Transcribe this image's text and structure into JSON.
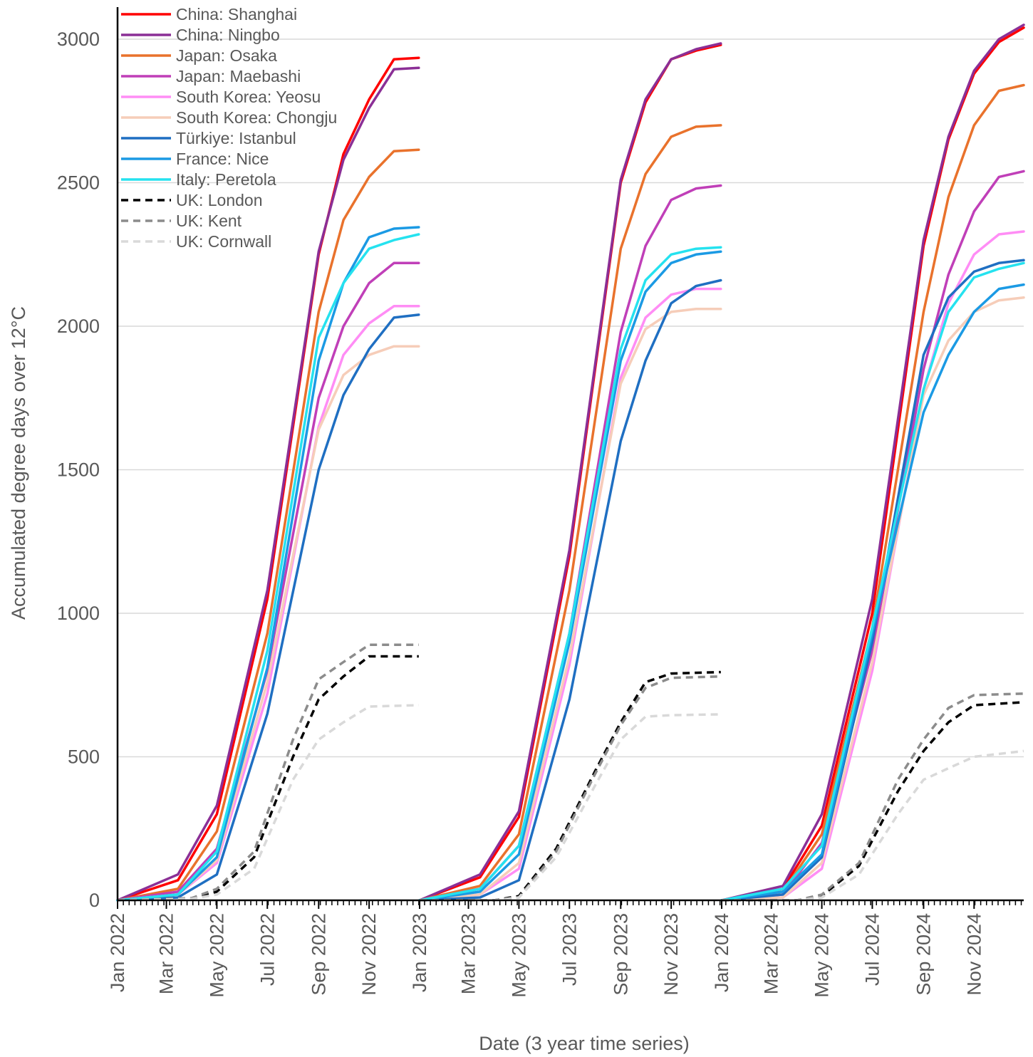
{
  "chart_data": {
    "type": "line",
    "title": "",
    "xlabel": "Date (3 year time series)",
    "ylabel": "Accumulated degree days over 12°C",
    "xlim": [
      "2022-01-01",
      "2024-12-31"
    ],
    "ylim": [
      0,
      3000
    ],
    "y_ticks": [
      0,
      500,
      1000,
      1500,
      2000,
      2500,
      3000
    ],
    "x_tick_labels": [
      {
        "date": "2022-01-01",
        "label": "Jan 2022"
      },
      {
        "date": "2022-03-01",
        "label": "Mar 2022"
      },
      {
        "date": "2022-05-01",
        "label": "May 2022"
      },
      {
        "date": "2022-07-01",
        "label": "Jul 2022"
      },
      {
        "date": "2022-09-01",
        "label": "Sep 2022"
      },
      {
        "date": "2022-11-01",
        "label": "Nov 2022"
      },
      {
        "date": "2023-01-01",
        "label": "Jan 2023"
      },
      {
        "date": "2023-03-01",
        "label": "Mar 2023"
      },
      {
        "date": "2023-05-01",
        "label": "May 2023"
      },
      {
        "date": "2023-07-01",
        "label": "Jul 2023"
      },
      {
        "date": "2023-09-01",
        "label": "Sep 2023"
      },
      {
        "date": "2023-11-01",
        "label": "Nov 2023"
      },
      {
        "date": "2024-01-01",
        "label": "Jan 2024"
      },
      {
        "date": "2024-03-01",
        "label": "Mar 2024"
      },
      {
        "date": "2024-05-01",
        "label": "May 2024"
      },
      {
        "date": "2024-07-01",
        "label": "Jul 2024"
      },
      {
        "date": "2024-09-01",
        "label": "Sep 2024"
      },
      {
        "date": "2024-11-01",
        "label": "Nov 2024"
      }
    ],
    "grid": "horizontal",
    "legend_position": "top-left",
    "series": [
      {
        "name": "China: Shanghai",
        "color": "#ff0000",
        "dash": false,
        "x": [
          "2022-01-01",
          "2022-03-15",
          "2022-05-01",
          "2022-07-01",
          "2022-09-01",
          "2022-10-01",
          "2022-11-01",
          "2022-12-01",
          "2022-12-31",
          "2023-01-01",
          "2023-03-15",
          "2023-05-01",
          "2023-07-01",
          "2023-09-01",
          "2023-10-01",
          "2023-11-01",
          "2023-12-01",
          "2023-12-31",
          "2024-01-01",
          "2024-03-15",
          "2024-05-01",
          "2024-07-01",
          "2024-09-01",
          "2024-10-01",
          "2024-11-01",
          "2024-12-01",
          "2024-12-31"
        ],
        "y": [
          0,
          70,
          300,
          1050,
          2250,
          2600,
          2790,
          2930,
          2935,
          0,
          80,
          290,
          1200,
          2500,
          2780,
          2930,
          2960,
          2980,
          0,
          40,
          260,
          1000,
          2280,
          2650,
          2880,
          2990,
          3040
        ]
      },
      {
        "name": "China: Ningbo",
        "color": "#8b2f96",
        "dash": false,
        "x": [
          "2022-01-01",
          "2022-03-15",
          "2022-05-01",
          "2022-07-01",
          "2022-09-01",
          "2022-10-01",
          "2022-11-01",
          "2022-12-01",
          "2022-12-31",
          "2023-01-01",
          "2023-03-15",
          "2023-05-01",
          "2023-07-01",
          "2023-09-01",
          "2023-10-01",
          "2023-11-01",
          "2023-12-01",
          "2023-12-31",
          "2024-01-01",
          "2024-03-15",
          "2024-05-01",
          "2024-07-01",
          "2024-09-01",
          "2024-10-01",
          "2024-11-01",
          "2024-12-01",
          "2024-12-31"
        ],
        "y": [
          0,
          90,
          330,
          1080,
          2260,
          2580,
          2760,
          2895,
          2900,
          0,
          90,
          310,
          1220,
          2510,
          2790,
          2930,
          2965,
          2985,
          0,
          50,
          300,
          1050,
          2300,
          2660,
          2890,
          3000,
          3050
        ]
      },
      {
        "name": "Japan: Osaka",
        "color": "#e9722c",
        "dash": false,
        "x": [
          "2022-01-01",
          "2022-03-15",
          "2022-05-01",
          "2022-07-01",
          "2022-09-01",
          "2022-10-01",
          "2022-11-01",
          "2022-12-01",
          "2022-12-31",
          "2023-01-01",
          "2023-03-15",
          "2023-05-01",
          "2023-07-01",
          "2023-09-01",
          "2023-10-01",
          "2023-11-01",
          "2023-12-01",
          "2023-12-31",
          "2024-01-01",
          "2024-03-15",
          "2024-05-01",
          "2024-07-01",
          "2024-09-01",
          "2024-10-01",
          "2024-11-01",
          "2024-12-01",
          "2024-12-31"
        ],
        "y": [
          0,
          40,
          240,
          930,
          2050,
          2370,
          2520,
          2610,
          2615,
          0,
          50,
          230,
          1080,
          2270,
          2530,
          2660,
          2695,
          2700,
          0,
          30,
          230,
          950,
          2050,
          2450,
          2700,
          2820,
          2840
        ]
      },
      {
        "name": "Japan: Maebashi",
        "color": "#c03fb8",
        "dash": false,
        "x": [
          "2022-01-01",
          "2022-03-15",
          "2022-05-01",
          "2022-07-01",
          "2022-09-01",
          "2022-10-01",
          "2022-11-01",
          "2022-12-01",
          "2022-12-31",
          "2023-01-01",
          "2023-03-15",
          "2023-05-01",
          "2023-07-01",
          "2023-09-01",
          "2023-10-01",
          "2023-11-01",
          "2023-12-01",
          "2023-12-31",
          "2024-01-01",
          "2024-03-15",
          "2024-05-01",
          "2024-07-01",
          "2024-09-01",
          "2024-10-01",
          "2024-11-01",
          "2024-12-01",
          "2024-12-31"
        ],
        "y": [
          0,
          30,
          180,
          800,
          1750,
          2000,
          2150,
          2220,
          2220,
          0,
          40,
          190,
          930,
          1980,
          2280,
          2440,
          2480,
          2490,
          0,
          20,
          200,
          870,
          1850,
          2180,
          2400,
          2520,
          2540
        ]
      },
      {
        "name": "South Korea: Yeosu",
        "color": "#ff8df5",
        "dash": false,
        "x": [
          "2022-01-01",
          "2022-03-15",
          "2022-05-01",
          "2022-07-01",
          "2022-09-01",
          "2022-10-01",
          "2022-11-01",
          "2022-12-01",
          "2022-12-31",
          "2023-01-01",
          "2023-03-15",
          "2023-05-01",
          "2023-07-01",
          "2023-09-01",
          "2023-10-01",
          "2023-11-01",
          "2023-12-01",
          "2023-12-31",
          "2024-01-01",
          "2024-03-15",
          "2024-05-01",
          "2024-07-01",
          "2024-09-01",
          "2024-10-01",
          "2024-11-01",
          "2024-12-01",
          "2024-12-31"
        ],
        "y": [
          0,
          20,
          130,
          720,
          1650,
          1900,
          2010,
          2070,
          2070,
          0,
          20,
          110,
          820,
          1820,
          2030,
          2110,
          2130,
          2130,
          0,
          10,
          110,
          800,
          1780,
          2080,
          2250,
          2320,
          2330
        ]
      },
      {
        "name": "South Korea: Chongju",
        "color": "#f6cdb9",
        "dash": false,
        "x": [
          "2022-01-01",
          "2022-03-15",
          "2022-05-01",
          "2022-07-01",
          "2022-09-01",
          "2022-10-01",
          "2022-11-01",
          "2022-12-01",
          "2022-12-31",
          "2023-01-01",
          "2023-03-15",
          "2023-05-01",
          "2023-07-01",
          "2023-09-01",
          "2023-10-01",
          "2023-11-01",
          "2023-12-01",
          "2023-12-31",
          "2024-01-01",
          "2024-03-15",
          "2024-05-01",
          "2024-07-01",
          "2024-09-01",
          "2024-10-01",
          "2024-11-01",
          "2024-12-01",
          "2024-12-31"
        ],
        "y": [
          0,
          20,
          140,
          760,
          1640,
          1830,
          1900,
          1930,
          1930,
          0,
          20,
          130,
          850,
          1800,
          1990,
          2050,
          2060,
          2060,
          0,
          10,
          130,
          830,
          1760,
          1950,
          2050,
          2090,
          2100
        ]
      },
      {
        "name": "Türkiye: Istanbul",
        "color": "#1f6fc2",
        "dash": false,
        "x": [
          "2022-01-01",
          "2022-03-15",
          "2022-05-01",
          "2022-07-01",
          "2022-09-01",
          "2022-10-01",
          "2022-11-01",
          "2022-12-01",
          "2022-12-31",
          "2023-01-01",
          "2023-03-15",
          "2023-05-01",
          "2023-07-01",
          "2023-09-01",
          "2023-10-01",
          "2023-11-01",
          "2023-12-01",
          "2023-12-31",
          "2024-01-01",
          "2024-03-15",
          "2024-05-01",
          "2024-07-01",
          "2024-09-01",
          "2024-10-01",
          "2024-11-01",
          "2024-12-01",
          "2024-12-31"
        ],
        "y": [
          0,
          10,
          90,
          650,
          1500,
          1760,
          1920,
          2030,
          2040,
          0,
          10,
          70,
          700,
          1600,
          1880,
          2080,
          2140,
          2160,
          0,
          20,
          150,
          900,
          1900,
          2100,
          2190,
          2220,
          2230
        ]
      },
      {
        "name": "France: Nice",
        "color": "#1b9ae4",
        "dash": false,
        "x": [
          "2022-01-01",
          "2022-03-15",
          "2022-05-01",
          "2022-07-01",
          "2022-09-01",
          "2022-10-01",
          "2022-11-01",
          "2022-12-01",
          "2022-12-31",
          "2023-01-01",
          "2023-03-15",
          "2023-05-01",
          "2023-07-01",
          "2023-09-01",
          "2023-10-01",
          "2023-11-01",
          "2023-12-01",
          "2023-12-31",
          "2024-01-01",
          "2024-03-15",
          "2024-05-01",
          "2024-07-01",
          "2024-09-01",
          "2024-10-01",
          "2024-11-01",
          "2024-12-01",
          "2024-12-31"
        ],
        "y": [
          0,
          20,
          150,
          810,
          1880,
          2150,
          2310,
          2340,
          2345,
          0,
          30,
          160,
          900,
          1880,
          2120,
          2220,
          2250,
          2260,
          0,
          30,
          160,
          930,
          1700,
          1900,
          2050,
          2130,
          2145
        ]
      },
      {
        "name": "Italy: Peretola",
        "color": "#25e2ef",
        "dash": false,
        "x": [
          "2022-01-01",
          "2022-03-15",
          "2022-05-01",
          "2022-07-01",
          "2022-09-01",
          "2022-10-01",
          "2022-11-01",
          "2022-12-01",
          "2022-12-31",
          "2023-01-01",
          "2023-03-15",
          "2023-05-01",
          "2023-07-01",
          "2023-09-01",
          "2023-10-01",
          "2023-11-01",
          "2023-12-01",
          "2023-12-31",
          "2024-01-01",
          "2024-03-15",
          "2024-05-01",
          "2024-07-01",
          "2024-09-01",
          "2024-10-01",
          "2024-11-01",
          "2024-12-01",
          "2024-12-31"
        ],
        "y": [
          0,
          20,
          170,
          870,
          1960,
          2150,
          2270,
          2300,
          2320,
          0,
          40,
          190,
          930,
          1920,
          2160,
          2250,
          2270,
          2275,
          0,
          40,
          190,
          950,
          1780,
          2050,
          2170,
          2200,
          2220
        ]
      },
      {
        "name": "UK: London",
        "color": "#000000",
        "dash": true,
        "x": [
          "2022-01-01",
          "2022-04-01",
          "2022-05-01",
          "2022-06-15",
          "2022-08-01",
          "2022-09-01",
          "2022-10-01",
          "2022-11-01",
          "2022-12-31",
          "2023-01-01",
          "2023-04-01",
          "2023-05-01",
          "2023-06-15",
          "2023-08-01",
          "2023-09-01",
          "2023-10-01",
          "2023-11-01",
          "2023-12-31",
          "2024-01-01",
          "2024-04-01",
          "2024-05-01",
          "2024-06-15",
          "2024-08-01",
          "2024-09-01",
          "2024-10-01",
          "2024-11-01",
          "2024-12-31"
        ],
        "y": [
          0,
          5,
          30,
          150,
          500,
          700,
          780,
          850,
          850,
          0,
          0,
          15,
          180,
          450,
          620,
          760,
          790,
          795,
          0,
          0,
          15,
          120,
          380,
          520,
          620,
          680,
          690
        ]
      },
      {
        "name": "UK: Kent",
        "color": "#8c8c8c",
        "dash": true,
        "x": [
          "2022-01-01",
          "2022-04-01",
          "2022-05-01",
          "2022-06-15",
          "2022-08-01",
          "2022-09-01",
          "2022-10-01",
          "2022-11-01",
          "2022-12-31",
          "2023-01-01",
          "2023-04-01",
          "2023-05-01",
          "2023-06-15",
          "2023-08-01",
          "2023-09-01",
          "2023-10-01",
          "2023-11-01",
          "2023-12-31",
          "2024-01-01",
          "2024-04-01",
          "2024-05-01",
          "2024-06-15",
          "2024-08-01",
          "2024-09-01",
          "2024-10-01",
          "2024-11-01",
          "2024-12-31"
        ],
        "y": [
          0,
          8,
          40,
          170,
          560,
          770,
          830,
          890,
          890,
          0,
          0,
          10,
          170,
          440,
          610,
          740,
          775,
          780,
          0,
          0,
          20,
          130,
          420,
          560,
          670,
          715,
          720
        ]
      },
      {
        "name": "UK: Cornwall",
        "color": "#d9d9d9",
        "dash": true,
        "x": [
          "2022-01-01",
          "2022-04-01",
          "2022-05-01",
          "2022-06-15",
          "2022-08-01",
          "2022-09-01",
          "2022-10-01",
          "2022-11-01",
          "2022-12-31",
          "2023-01-01",
          "2023-04-01",
          "2023-05-01",
          "2023-06-15",
          "2023-08-01",
          "2023-09-01",
          "2023-10-01",
          "2023-11-01",
          "2023-12-31",
          "2024-01-01",
          "2024-04-01",
          "2024-05-01",
          "2024-06-15",
          "2024-08-01",
          "2024-09-01",
          "2024-10-01",
          "2024-11-01",
          "2024-12-31"
        ],
        "y": [
          0,
          5,
          20,
          110,
          420,
          560,
          620,
          675,
          680,
          0,
          0,
          10,
          150,
          400,
          560,
          640,
          645,
          648,
          0,
          0,
          10,
          90,
          300,
          420,
          460,
          500,
          520
        ]
      }
    ]
  }
}
